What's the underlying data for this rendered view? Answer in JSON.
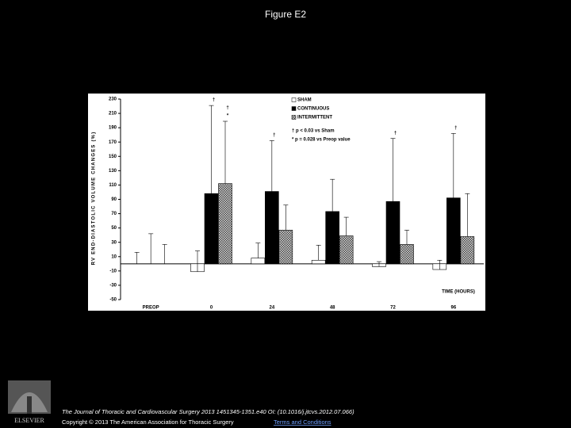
{
  "header": {
    "title": "Figure E2"
  },
  "chart_data": {
    "type": "bar",
    "y_label": "RV END-DIASTOLIC VOLUME CHANGES (%)",
    "x_label": "TIME (HOURS)",
    "categories": [
      "PREOP",
      "0",
      "24",
      "48",
      "72",
      "96"
    ],
    "series": [
      {
        "name": "SHAM",
        "color": "#ffffff",
        "values": [
          0,
          -11,
          8,
          5,
          -4,
          -8
        ],
        "errors": [
          16,
          29,
          21,
          21,
          7,
          13
        ]
      },
      {
        "name": "CONTINUOUS",
        "color": "#000000",
        "values": [
          0,
          98,
          101,
          73,
          87,
          92
        ],
        "errors": [
          42,
          123,
          71,
          45,
          88,
          90
        ],
        "annotations": [
          null,
          [
            "†"
          ],
          [
            "†"
          ],
          null,
          [
            "†"
          ],
          [
            "†"
          ]
        ]
      },
      {
        "name": "INTERMITTENT",
        "color": "#9a9a9a",
        "hatched": true,
        "values": [
          0,
          112,
          47,
          39,
          27,
          38
        ],
        "errors": [
          27,
          87,
          35,
          26,
          20,
          60
        ],
        "annotations": [
          null,
          [
            "†",
            "*"
          ],
          null,
          null,
          null,
          null
        ]
      }
    ],
    "notes": [
      "† p < 0.03 vs Sham",
      "* p = 0.028 vs Preop value"
    ],
    "ylim": [
      -50,
      230
    ],
    "yticks": [
      230,
      210,
      190,
      170,
      150,
      130,
      110,
      90,
      70,
      50,
      30,
      10,
      -10,
      -30,
      -50
    ]
  },
  "footer": {
    "citation": "The Journal of Thoracic and Cardiovascular Surgery 2013 1451345-1351.e40 OI: (10.1016/j.jtcvs.2012.07.066)",
    "copyright": "Copyright © 2013 The American Association for Thoracic Surgery",
    "link": "Terms and Conditions",
    "logo": "ELSEVIER"
  }
}
